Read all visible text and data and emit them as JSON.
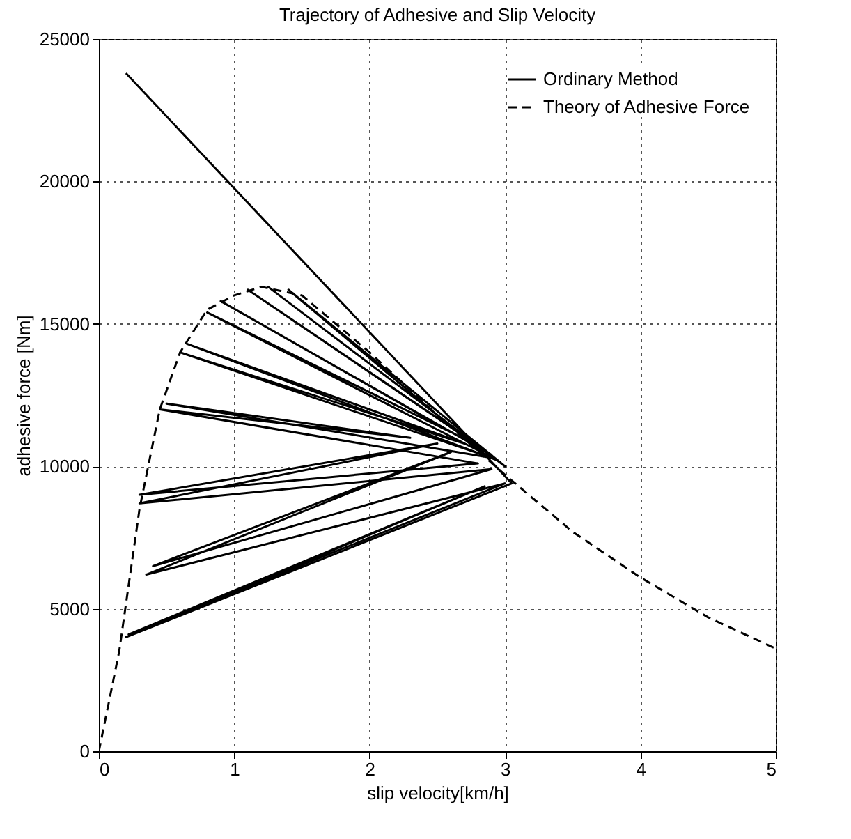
{
  "chart_data": {
    "type": "line",
    "title": "Trajectory of Adhesive and Slip Velocity",
    "xlabel": "slip velocity[km/h]",
    "ylabel": "adhesive force [Nm]",
    "series": [
      {
        "name": "Ordinary Method",
        "color": "#000000",
        "line_style": "solid",
        "x": [
          0.2,
          3.05,
          0.2,
          2.85,
          0.22,
          3.0,
          0.35,
          2.6,
          0.4,
          2.9,
          0.3,
          2.5,
          0.3,
          2.8,
          0.45,
          2.3,
          0.5,
          2.9,
          0.6,
          2.7,
          0.65,
          2.95,
          0.8,
          2.6,
          0.9,
          2.9,
          1.1,
          2.75,
          1.25,
          3.0,
          1.4,
          2.8
        ],
        "values": [
          23800,
          9400,
          4000,
          9300,
          4100,
          9400,
          6200,
          10500,
          6500,
          9900,
          8700,
          10800,
          9000,
          10100,
          12000,
          11000,
          12200,
          10300,
          14000,
          10800,
          14300,
          10200,
          15400,
          11200,
          15800,
          10400,
          16200,
          10900,
          16300,
          10000,
          16200,
          10600
        ]
      },
      {
        "name": "Theory of Adhesive Force",
        "color": "#000000",
        "line_style": "dashed",
        "x": [
          0,
          0.15,
          0.3,
          0.45,
          0.6,
          0.8,
          1.0,
          1.2,
          1.5,
          2.0,
          2.5,
          3.0,
          3.5,
          4.0,
          4.5,
          5.0
        ],
        "values": [
          0,
          3500,
          8500,
          12000,
          14000,
          15500,
          16000,
          16300,
          16000,
          14000,
          11800,
          9700,
          7700,
          6100,
          4700,
          3600
        ]
      }
    ],
    "xlim": [
      0,
      5
    ],
    "xticks": [
      0,
      1,
      2,
      3,
      4,
      5
    ],
    "ylim": [
      0,
      25000
    ],
    "yticks": [
      0,
      5000,
      10000,
      15000,
      20000,
      25000
    ],
    "grid": true,
    "legend": "top right",
    "marker": "none"
  }
}
